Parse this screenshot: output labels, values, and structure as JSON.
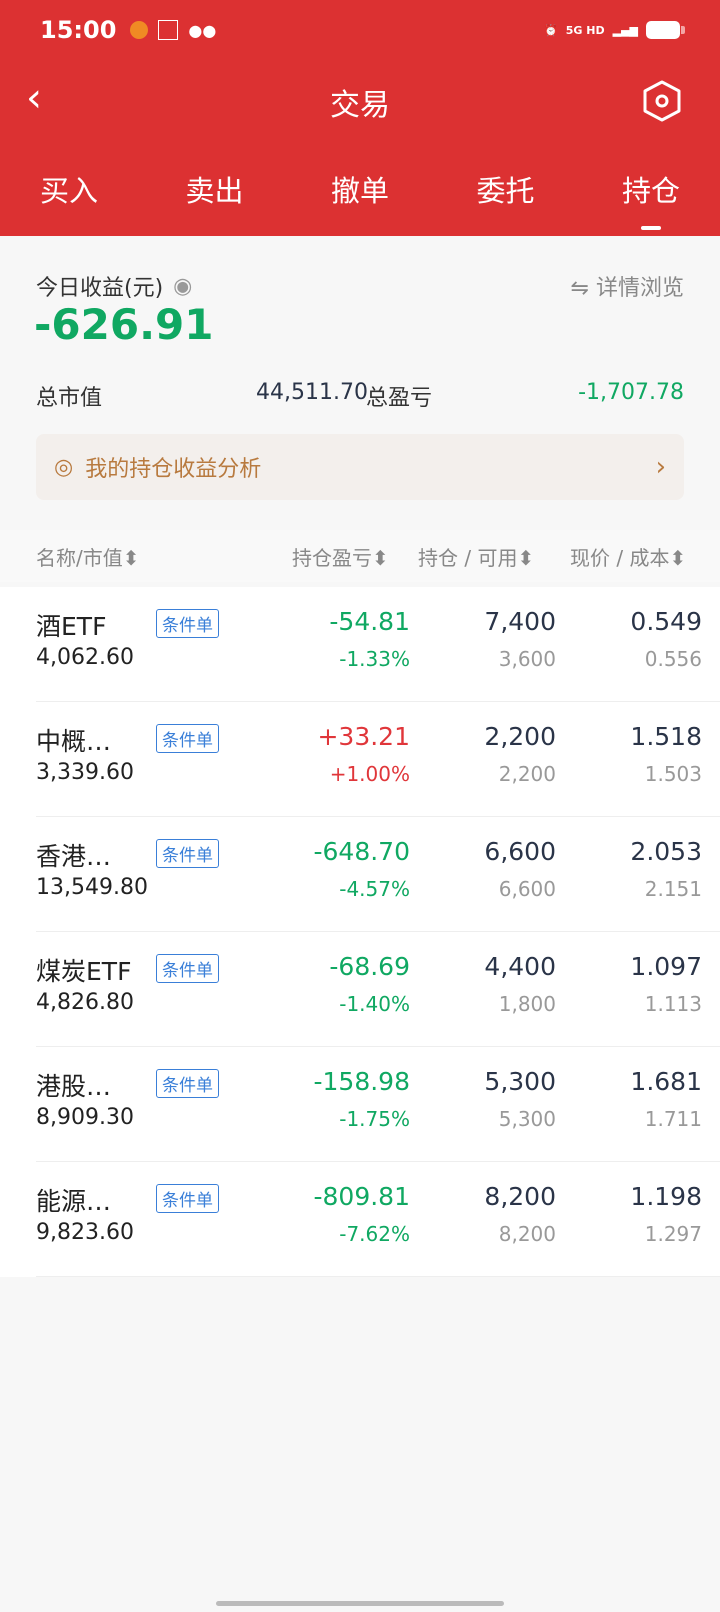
{
  "status_bar": {
    "time": "15:00",
    "network": "5G HD"
  },
  "header": {
    "title": "交易",
    "back_icon": "chevron-left-icon",
    "settings_icon": "hexagon-settings-icon"
  },
  "tabs": [
    {
      "label": "买入"
    },
    {
      "label": "卖出"
    },
    {
      "label": "撤单"
    },
    {
      "label": "委托"
    },
    {
      "label": "持仓",
      "active": true
    }
  ],
  "summary": {
    "today_label": "今日收益(元)",
    "today_value": "-626.91",
    "detail_label": "详情浏览",
    "market_value_label": "总市值",
    "market_value": "44,511.70",
    "total_pl_label": "总盈亏",
    "total_pl": "-1,707.78",
    "analysis_label": "我的持仓收益分析"
  },
  "table": {
    "headers": [
      "名称/市值",
      "持仓盈亏",
      "持仓 / 可用",
      "现价 / 成本"
    ],
    "rows": [
      {
        "name": "酒ETF",
        "market_value": "4,062.60",
        "tag": "条件单",
        "pl": "-54.81",
        "pl_pct": "-1.33%",
        "position": "7,400",
        "available": "3,600",
        "price": "0.549",
        "cost": "0.556",
        "up": false
      },
      {
        "name": "中概…",
        "market_value": "3,339.60",
        "tag": "条件单",
        "pl": "+33.21",
        "pl_pct": "+1.00%",
        "position": "2,200",
        "available": "2,200",
        "price": "1.518",
        "cost": "1.503",
        "up": true
      },
      {
        "name": "香港…",
        "market_value": "13,549.80",
        "tag": "条件单",
        "pl": "-648.70",
        "pl_pct": "-4.57%",
        "position": "6,600",
        "available": "6,600",
        "price": "2.053",
        "cost": "2.151",
        "up": false
      },
      {
        "name": "煤炭ETF",
        "market_value": "4,826.80",
        "tag": "条件单",
        "pl": "-68.69",
        "pl_pct": "-1.40%",
        "position": "4,400",
        "available": "1,800",
        "price": "1.097",
        "cost": "1.113",
        "up": false
      },
      {
        "name": "港股…",
        "market_value": "8,909.30",
        "tag": "条件单",
        "pl": "-158.98",
        "pl_pct": "-1.75%",
        "position": "5,300",
        "available": "5,300",
        "price": "1.681",
        "cost": "1.711",
        "up": false
      },
      {
        "name": "能源…",
        "market_value": "9,823.60",
        "tag": "条件单",
        "pl": "-809.81",
        "pl_pct": "-7.62%",
        "position": "8,200",
        "available": "8,200",
        "price": "1.198",
        "cost": "1.297",
        "up": false
      }
    ]
  },
  "colors": {
    "brand_red": "#dc3132",
    "gain": "#e0363a",
    "loss": "#10a862",
    "tag_blue": "#3a7fd8"
  }
}
